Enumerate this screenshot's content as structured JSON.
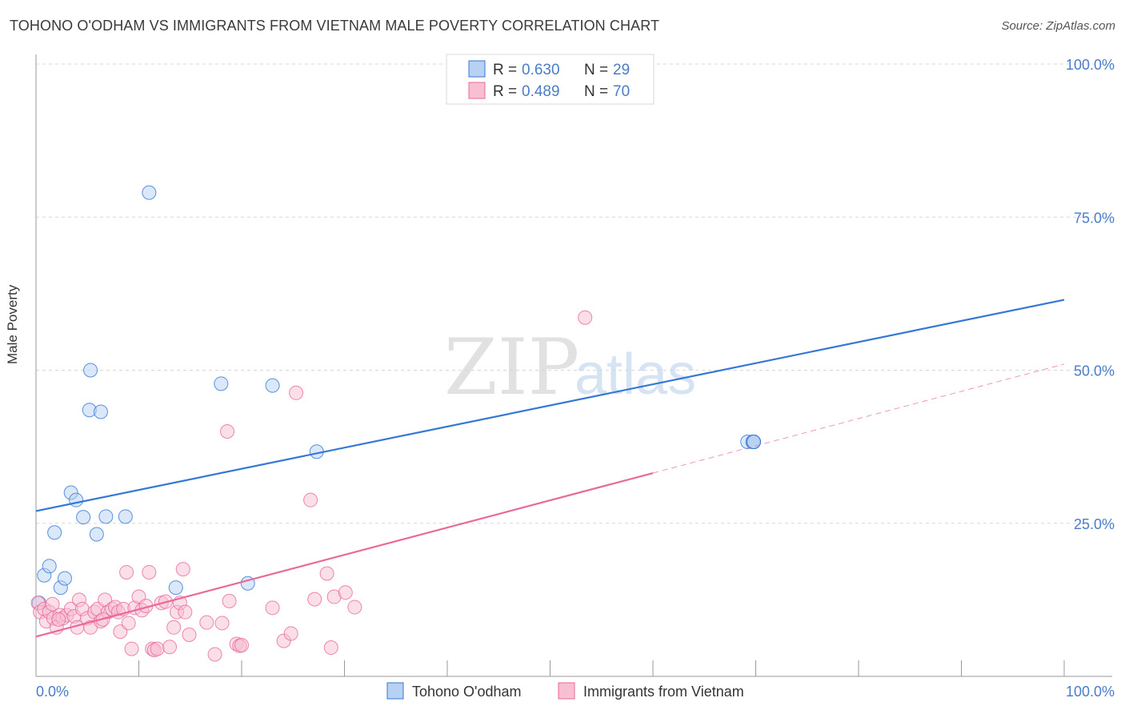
{
  "header": {
    "title": "TOHONO O'ODHAM VS IMMIGRANTS FROM VIETNAM MALE POVERTY CORRELATION CHART",
    "source": "Source: ZipAtlas.com"
  },
  "watermark": {
    "zip": "ZIP",
    "atlas": "atlas"
  },
  "colors": {
    "blue": "#3477d4",
    "blue_fill": "#b7d1f3",
    "pink": "#e8699a",
    "pink_fill": "#f7bfd1",
    "tick_text": "#4a7cc9",
    "grid": "#d8d8d8"
  },
  "chart_data": {
    "type": "scatter",
    "title": "TOHONO O'ODHAM VS IMMIGRANTS FROM VIETNAM MALE POVERTY CORRELATION CHART",
    "xlabel": "",
    "ylabel": "Male Poverty",
    "xlim": [
      0,
      100
    ],
    "ylim": [
      0,
      100
    ],
    "x_tick_labels": [
      "0.0%",
      "100.0%"
    ],
    "y_ticks": [
      {
        "value": 25,
        "label": "25.0%"
      },
      {
        "value": 50,
        "label": "50.0%"
      },
      {
        "value": 75,
        "label": "75.0%"
      },
      {
        "value": 100,
        "label": "100.0%"
      }
    ],
    "grid": true,
    "legend_position": "bottom-center",
    "stats_legend_position": "top-center",
    "stats_legend": [
      {
        "r_label": "R = ",
        "r": "0.630",
        "n_label": "N = ",
        "n": "29"
      },
      {
        "r_label": "R = ",
        "r": "0.489",
        "n_label": "N = ",
        "n": "70"
      }
    ],
    "series": [
      {
        "name": "Tohono O'odham",
        "color": "#3477d4",
        "trend": {
          "x0": 0,
          "y0": 27.0,
          "x1": 100,
          "y1": 61.5,
          "dashed_after": null
        },
        "points": [
          [
            0.3,
            12.0
          ],
          [
            0.8,
            16.5
          ],
          [
            1.3,
            18.0
          ],
          [
            1.8,
            23.5
          ],
          [
            2.4,
            14.5
          ],
          [
            2.8,
            16.0
          ],
          [
            3.4,
            30.0
          ],
          [
            3.9,
            28.8
          ],
          [
            4.6,
            26.0
          ],
          [
            5.2,
            43.5
          ],
          [
            5.3,
            50.0
          ],
          [
            5.9,
            23.2
          ],
          [
            6.3,
            43.2
          ],
          [
            6.8,
            26.1
          ],
          [
            8.7,
            26.1
          ],
          [
            11.0,
            79.0
          ],
          [
            13.6,
            14.5
          ],
          [
            18.0,
            47.8
          ],
          [
            20.6,
            15.2
          ],
          [
            23.0,
            47.5
          ],
          [
            27.3,
            36.7
          ],
          [
            69.2,
            38.3
          ],
          [
            69.7,
            38.3
          ],
          [
            69.8,
            38.3
          ],
          [
            69.8,
            38.3
          ],
          [
            69.8,
            38.3
          ],
          [
            69.8,
            38.3
          ],
          [
            69.8,
            38.3
          ],
          [
            69.8,
            38.3
          ]
        ]
      },
      {
        "name": "Immigrants from Vietnam",
        "color": "#e8699a",
        "trend": {
          "x0": 0,
          "y0": 6.5,
          "x1": 100,
          "y1": 51.0,
          "dashed_after": 60
        },
        "points": [
          [
            0.2,
            12.0
          ],
          [
            0.4,
            10.5
          ],
          [
            0.8,
            11.0
          ],
          [
            1.0,
            9.0
          ],
          [
            1.3,
            10.5
          ],
          [
            1.7,
            9.5
          ],
          [
            2.0,
            8.0
          ],
          [
            2.3,
            10.0
          ],
          [
            2.6,
            9.5
          ],
          [
            3.0,
            10.0
          ],
          [
            3.4,
            11.0
          ],
          [
            3.7,
            9.8
          ],
          [
            4.2,
            12.5
          ],
          [
            4.5,
            11.0
          ],
          [
            5.0,
            9.5
          ],
          [
            5.3,
            8.0
          ],
          [
            5.7,
            10.5
          ],
          [
            6.0,
            11.0
          ],
          [
            6.3,
            9.0
          ],
          [
            6.7,
            12.5
          ],
          [
            7.0,
            10.5
          ],
          [
            7.4,
            11.0
          ],
          [
            7.7,
            11.3
          ],
          [
            8.0,
            10.5
          ],
          [
            8.2,
            7.3
          ],
          [
            8.5,
            11.0
          ],
          [
            8.8,
            17.0
          ],
          [
            9.0,
            8.7
          ],
          [
            9.3,
            4.5
          ],
          [
            9.6,
            11.2
          ],
          [
            10.0,
            13.0
          ],
          [
            10.3,
            10.8
          ],
          [
            10.7,
            11.5
          ],
          [
            11.0,
            17.0
          ],
          [
            11.3,
            4.5
          ],
          [
            11.5,
            4.3
          ],
          [
            11.8,
            4.5
          ],
          [
            12.2,
            12.0
          ],
          [
            12.6,
            12.2
          ],
          [
            13.0,
            4.8
          ],
          [
            13.4,
            8.0
          ],
          [
            13.7,
            10.5
          ],
          [
            14.0,
            12.0
          ],
          [
            14.3,
            17.5
          ],
          [
            14.5,
            10.5
          ],
          [
            14.9,
            6.8
          ],
          [
            16.6,
            8.8
          ],
          [
            17.4,
            3.6
          ],
          [
            18.1,
            8.7
          ],
          [
            18.6,
            40.0
          ],
          [
            18.8,
            12.3
          ],
          [
            19.5,
            5.3
          ],
          [
            19.8,
            5.0
          ],
          [
            20.0,
            5.1
          ],
          [
            23.0,
            11.2
          ],
          [
            24.1,
            5.8
          ],
          [
            24.8,
            7.0
          ],
          [
            25.3,
            46.3
          ],
          [
            26.7,
            28.8
          ],
          [
            27.1,
            12.6
          ],
          [
            28.3,
            16.8
          ],
          [
            28.7,
            4.7
          ],
          [
            29.0,
            13.0
          ],
          [
            30.1,
            13.7
          ],
          [
            31.0,
            11.3
          ],
          [
            53.4,
            58.6
          ],
          [
            1.6,
            11.8
          ],
          [
            2.2,
            9.3
          ],
          [
            4.0,
            8.0
          ],
          [
            6.5,
            9.3
          ]
        ]
      }
    ]
  }
}
